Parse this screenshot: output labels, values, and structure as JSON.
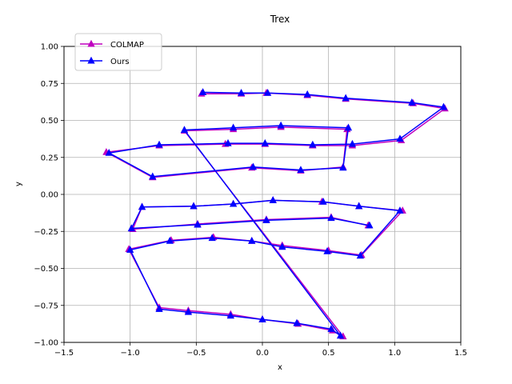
{
  "chart_data": {
    "type": "line",
    "title": "Trex",
    "xlabel": "x",
    "ylabel": "y",
    "xlim": [
      -1.5,
      1.5
    ],
    "ylim": [
      -1.0,
      1.0
    ],
    "xticks": [
      -1.5,
      -1.0,
      -0.5,
      0.0,
      0.5,
      1.0,
      1.5
    ],
    "yticks": [
      -1.0,
      -0.75,
      -0.5,
      -0.25,
      0.0,
      0.25,
      0.5,
      0.75,
      1.0
    ],
    "xtick_labels": [
      "−1.5",
      "−1.0",
      "−0.5",
      "0.0",
      "0.5",
      "1.0",
      "1.5"
    ],
    "ytick_labels": [
      "−1.00",
      "−0.75",
      "−0.50",
      "−0.25",
      "0.00",
      "0.25",
      "0.50",
      "0.75",
      "1.00"
    ],
    "grid": true,
    "legend_position": "upper-left",
    "marker": "triangle-up",
    "series": [
      {
        "name": "COLMAP",
        "color": "#bf00bf",
        "points": [
          [
            -0.46,
            0.68
          ],
          [
            -0.16,
            0.68
          ],
          [
            0.03,
            0.685
          ],
          [
            0.34,
            0.67
          ],
          [
            0.63,
            0.645
          ],
          [
            1.14,
            0.615
          ],
          [
            1.38,
            0.58
          ],
          [
            1.05,
            0.365
          ],
          [
            0.68,
            0.33
          ],
          [
            0.38,
            0.33
          ],
          [
            0.02,
            0.34
          ],
          [
            -0.28,
            0.34
          ],
          [
            -0.78,
            0.33
          ],
          [
            -1.18,
            0.285
          ],
          [
            -0.83,
            0.115
          ],
          [
            -0.08,
            0.18
          ],
          [
            0.29,
            0.16
          ],
          [
            0.61,
            0.185
          ],
          [
            0.64,
            0.44
          ],
          [
            0.14,
            0.455
          ],
          [
            -0.22,
            0.44
          ],
          [
            -0.59,
            0.43
          ],
          [
            0.61,
            -0.96
          ],
          [
            0.53,
            -0.92
          ],
          [
            0.27,
            -0.875
          ],
          [
            0.0,
            -0.845
          ],
          [
            -0.24,
            -0.81
          ],
          [
            -0.56,
            -0.785
          ],
          [
            -0.78,
            -0.765
          ],
          [
            -1.01,
            -0.37
          ],
          [
            -0.69,
            -0.31
          ],
          [
            -0.37,
            -0.29
          ],
          [
            -0.08,
            -0.315
          ],
          [
            0.15,
            -0.345
          ],
          [
            0.5,
            -0.38
          ],
          [
            0.75,
            -0.41
          ],
          [
            1.06,
            -0.11
          ],
          [
            0.73,
            -0.08
          ],
          [
            0.45,
            -0.05
          ],
          [
            0.08,
            -0.04
          ],
          [
            -0.22,
            -0.065
          ],
          [
            -0.52,
            -0.08
          ],
          [
            -0.91,
            -0.085
          ],
          [
            -0.98,
            -0.235
          ],
          [
            -0.49,
            -0.2
          ],
          [
            0.03,
            -0.17
          ],
          [
            0.52,
            -0.155
          ],
          [
            0.8,
            -0.21
          ]
        ]
      },
      {
        "name": "Ours",
        "color": "#0000ff",
        "points": [
          [
            -0.45,
            0.69
          ],
          [
            -0.16,
            0.685
          ],
          [
            0.04,
            0.685
          ],
          [
            0.34,
            0.675
          ],
          [
            0.63,
            0.65
          ],
          [
            1.13,
            0.62
          ],
          [
            1.37,
            0.59
          ],
          [
            1.04,
            0.375
          ],
          [
            0.68,
            0.34
          ],
          [
            0.38,
            0.335
          ],
          [
            0.02,
            0.345
          ],
          [
            -0.26,
            0.345
          ],
          [
            -0.78,
            0.335
          ],
          [
            -1.16,
            0.28
          ],
          [
            -0.83,
            0.12
          ],
          [
            -0.07,
            0.185
          ],
          [
            0.29,
            0.165
          ],
          [
            0.61,
            0.18
          ],
          [
            0.65,
            0.45
          ],
          [
            0.14,
            0.465
          ],
          [
            -0.22,
            0.45
          ],
          [
            -0.59,
            0.435
          ],
          [
            0.59,
            -0.955
          ],
          [
            0.52,
            -0.91
          ],
          [
            0.26,
            -0.87
          ],
          [
            0.0,
            -0.845
          ],
          [
            -0.24,
            -0.82
          ],
          [
            -0.56,
            -0.795
          ],
          [
            -0.78,
            -0.775
          ],
          [
            -1.0,
            -0.375
          ],
          [
            -0.7,
            -0.315
          ],
          [
            -0.38,
            -0.295
          ],
          [
            -0.08,
            -0.315
          ],
          [
            0.15,
            -0.355
          ],
          [
            0.49,
            -0.385
          ],
          [
            0.74,
            -0.415
          ],
          [
            1.04,
            -0.11
          ],
          [
            0.73,
            -0.08
          ],
          [
            0.46,
            -0.05
          ],
          [
            0.08,
            -0.04
          ],
          [
            -0.22,
            -0.065
          ],
          [
            -0.52,
            -0.08
          ],
          [
            -0.91,
            -0.085
          ],
          [
            -0.99,
            -0.23
          ],
          [
            -0.49,
            -0.205
          ],
          [
            0.03,
            -0.175
          ],
          [
            0.52,
            -0.16
          ],
          [
            0.81,
            -0.21
          ]
        ]
      }
    ]
  }
}
